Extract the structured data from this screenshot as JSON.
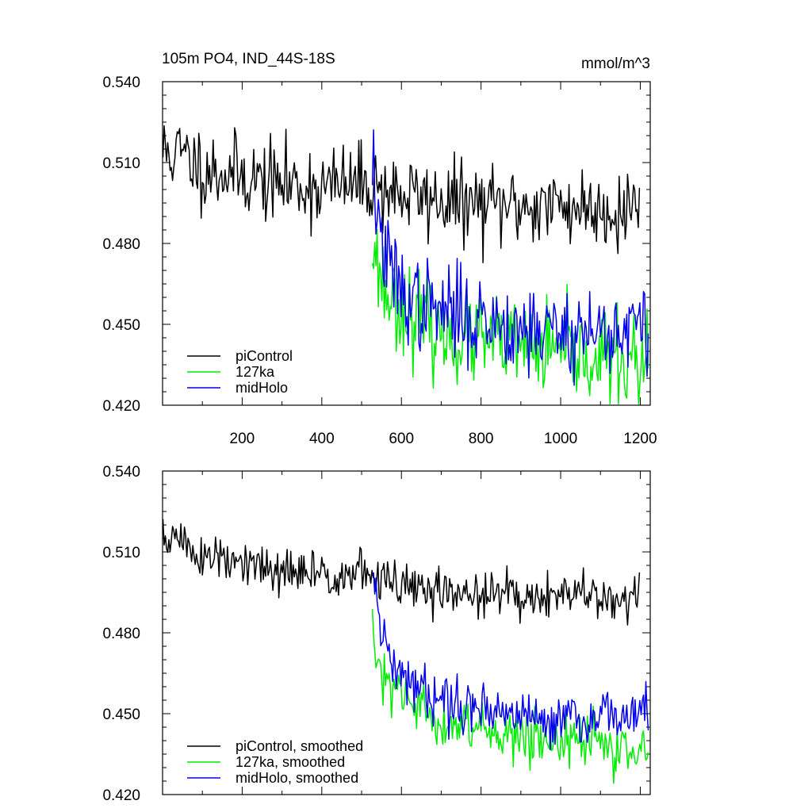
{
  "colors": {
    "piControl": "#000000",
    "127ka": "#00ee00",
    "midHolo": "#0000ee"
  },
  "chart_data": [
    {
      "type": "line",
      "title": "105m PO4, IND_44S-18S",
      "units": "mmol/m^3",
      "xlim": [
        0,
        1225
      ],
      "ylim": [
        0.42,
        0.54
      ],
      "yticks": [
        "0.420",
        "0.450",
        "0.480",
        "0.510",
        "0.540"
      ],
      "xticks": [
        "200",
        "400",
        "600",
        "800",
        "1000",
        "1200"
      ],
      "legend_position": "bottom-left",
      "series": [
        {
          "name": "piControl",
          "color": "#000000",
          "x_start": 1,
          "x_end": 1200,
          "step": 3,
          "anchors": [
            [
              1,
              0.514
            ],
            [
              50,
              0.513
            ],
            [
              100,
              0.508
            ],
            [
              200,
              0.505
            ],
            [
              300,
              0.502
            ],
            [
              400,
              0.501
            ],
            [
              500,
              0.502
            ],
            [
              530,
              0.502
            ],
            [
              600,
              0.498
            ],
            [
              700,
              0.496
            ],
            [
              800,
              0.494
            ],
            [
              900,
              0.494
            ],
            [
              1000,
              0.494
            ],
            [
              1100,
              0.493
            ],
            [
              1150,
              0.492
            ],
            [
              1200,
              0.496
            ]
          ],
          "noise": 0.0075,
          "seed": 11
        },
        {
          "name": "127ka",
          "color": "#00ee00",
          "x_start": 527,
          "x_end": 1222,
          "step": 3,
          "anchors": [
            [
              527,
              0.482
            ],
            [
              540,
              0.472
            ],
            [
              560,
              0.462
            ],
            [
              600,
              0.457
            ],
            [
              650,
              0.451
            ],
            [
              700,
              0.446
            ],
            [
              800,
              0.444
            ],
            [
              900,
              0.441
            ],
            [
              1000,
              0.439
            ],
            [
              1100,
              0.437
            ],
            [
              1222,
              0.435
            ]
          ],
          "noise": 0.0085,
          "seed": 23
        },
        {
          "name": "midHolo",
          "color": "#0000ee",
          "x_start": 527,
          "x_end": 1222,
          "step": 3,
          "anchors": [
            [
              527,
              0.511
            ],
            [
              540,
              0.49
            ],
            [
              560,
              0.474
            ],
            [
              600,
              0.462
            ],
            [
              650,
              0.457
            ],
            [
              700,
              0.455
            ],
            [
              800,
              0.452
            ],
            [
              900,
              0.449
            ],
            [
              1000,
              0.448
            ],
            [
              1100,
              0.447
            ],
            [
              1222,
              0.449
            ]
          ],
          "noise": 0.0085,
          "seed": 37
        }
      ]
    },
    {
      "type": "line",
      "title": "",
      "units": "",
      "xlim": [
        0,
        1225
      ],
      "ylim": [
        0.42,
        0.54
      ],
      "yticks": [
        "0.420",
        "0.450",
        "0.480",
        "0.510",
        "0.540"
      ],
      "xticks": [],
      "legend_position": "bottom-left",
      "series": [
        {
          "name": "piControl, smoothed",
          "color": "#000000",
          "x_start": 1,
          "x_end": 1200,
          "step": 3,
          "anchors": [
            [
              1,
              0.516
            ],
            [
              50,
              0.514
            ],
            [
              100,
              0.508
            ],
            [
              200,
              0.505
            ],
            [
              300,
              0.502
            ],
            [
              400,
              0.502
            ],
            [
              500,
              0.502
            ],
            [
              530,
              0.501
            ],
            [
              600,
              0.497
            ],
            [
              700,
              0.495
            ],
            [
              800,
              0.494
            ],
            [
              900,
              0.494
            ],
            [
              1000,
              0.494
            ],
            [
              1100,
              0.493
            ],
            [
              1150,
              0.492
            ],
            [
              1200,
              0.497
            ]
          ],
          "noise": 0.0045,
          "seed": 51
        },
        {
          "name": "127ka, smoothed",
          "color": "#00ee00",
          "x_start": 527,
          "x_end": 1222,
          "step": 3,
          "anchors": [
            [
              527,
              0.481
            ],
            [
              540,
              0.466
            ],
            [
              560,
              0.46
            ],
            [
              600,
              0.456
            ],
            [
              650,
              0.451
            ],
            [
              700,
              0.447
            ],
            [
              800,
              0.445
            ],
            [
              900,
              0.442
            ],
            [
              1000,
              0.44
            ],
            [
              1100,
              0.438
            ],
            [
              1222,
              0.436
            ]
          ],
          "noise": 0.0048,
          "seed": 63
        },
        {
          "name": "midHolo, smoothed",
          "color": "#0000ee",
          "x_start": 527,
          "x_end": 1222,
          "step": 3,
          "anchors": [
            [
              527,
              0.509
            ],
            [
              540,
              0.487
            ],
            [
              560,
              0.473
            ],
            [
              600,
              0.463
            ],
            [
              650,
              0.459
            ],
            [
              700,
              0.456
            ],
            [
              800,
              0.453
            ],
            [
              900,
              0.449
            ],
            [
              1000,
              0.448
            ],
            [
              1100,
              0.448
            ],
            [
              1222,
              0.452
            ]
          ],
          "noise": 0.0048,
          "seed": 79
        }
      ]
    }
  ]
}
